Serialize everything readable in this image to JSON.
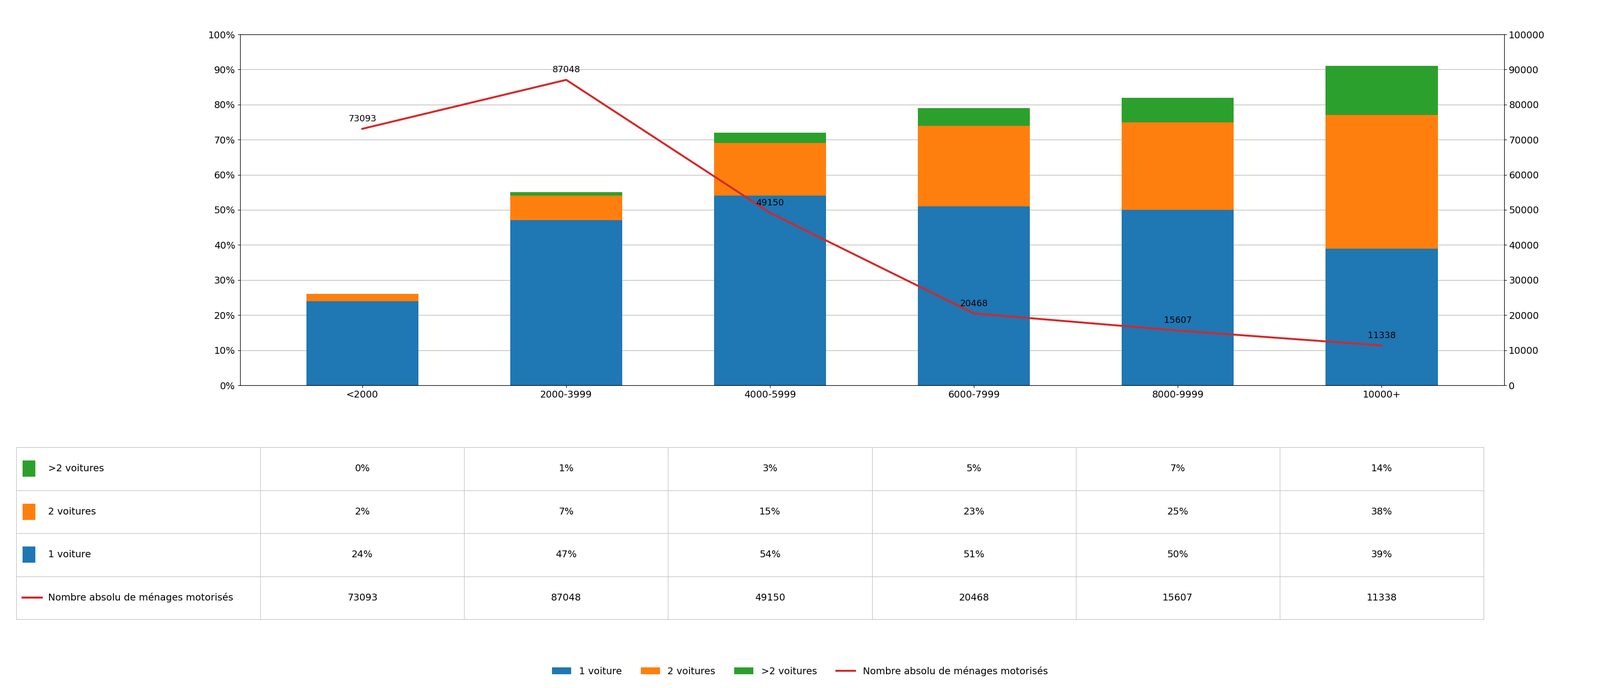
{
  "chart_data": {
    "type": "bar",
    "stacked": true,
    "categories": [
      "<2000",
      "2000-3999",
      "4000-5999",
      "6000-7999",
      "8000-9999",
      "10000+"
    ],
    "series": [
      {
        "name": "1 voiture",
        "values": [
          24,
          47,
          54,
          51,
          50,
          39
        ]
      },
      {
        "name": "2 voitures",
        "values": [
          2,
          7,
          15,
          23,
          25,
          38
        ]
      },
      {
        "name": ">2 voitures",
        "values": [
          0,
          1,
          3,
          5,
          7,
          14
        ]
      },
      {
        "name": "Nombre absolu de ménages motorisés",
        "type": "line",
        "axis": "y2",
        "data_labels": true,
        "values": [
          73093,
          87048,
          49150,
          20468,
          15607,
          11338
        ]
      }
    ],
    "ylim": [
      0,
      100
    ],
    "yticks": [
      {
        "value": 0,
        "label": "0%"
      },
      {
        "value": 10,
        "label": "10%"
      },
      {
        "value": 20,
        "label": "20%"
      },
      {
        "value": 30,
        "label": "30%"
      },
      {
        "value": 40,
        "label": "40%"
      },
      {
        "value": 50,
        "label": "50%"
      },
      {
        "value": 60,
        "label": "60%"
      },
      {
        "value": 70,
        "label": "70%"
      },
      {
        "value": 80,
        "label": "80%"
      },
      {
        "value": 90,
        "label": "90%"
      },
      {
        "value": 100,
        "label": "100%"
      }
    ],
    "y2lim": [
      0,
      100000
    ],
    "y2ticks": [
      0,
      10000,
      20000,
      30000,
      40000,
      50000,
      60000,
      70000,
      80000,
      90000,
      100000
    ],
    "grid": true,
    "legend": "lower center",
    "table": {
      "rows": [
        {
          "name": ">2 voitures",
          "cells": [
            "0%",
            "1%",
            "3%",
            "5%",
            "7%",
            "14%"
          ]
        },
        {
          "name": "2 voitures",
          "cells": [
            "2%",
            "7%",
            "15%",
            "23%",
            "25%",
            "38%"
          ]
        },
        {
          "name": "1 voiture",
          "cells": [
            "24%",
            "47%",
            "54%",
            "51%",
            "50%",
            "39%"
          ]
        },
        {
          "name": "Nombre absolu de ménages motorisés",
          "cells": [
            "73093",
            "87048",
            "49150",
            "20468",
            "15607",
            "11338"
          ]
        }
      ]
    }
  }
}
